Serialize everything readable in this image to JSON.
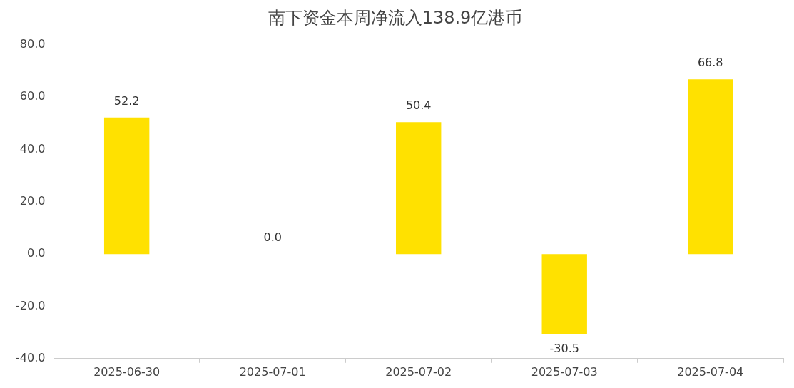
{
  "chart_data": {
    "type": "bar",
    "title": "南下资金本周净流入138.9亿港币",
    "categories": [
      "2025-06-30",
      "2025-07-01",
      "2025-07-02",
      "2025-07-03",
      "2025-07-04"
    ],
    "values": [
      52.2,
      0,
      50.4,
      -30.5,
      66.8
    ],
    "value_labels": [
      "52.2",
      "0.0",
      "50.4",
      "-30.5",
      "66.8"
    ],
    "color": "#ffe100",
    "ylim": [
      -40,
      80
    ],
    "yticks": [
      {
        "value": -40,
        "label": "-40.0"
      },
      {
        "value": -20,
        "label": "-20.0"
      },
      {
        "value": 0,
        "label": "0.0"
      },
      {
        "value": 20,
        "label": "20.0"
      },
      {
        "value": 40,
        "label": "40.0"
      },
      {
        "value": 60,
        "label": "60.0"
      },
      {
        "value": 80,
        "label": "80.0"
      }
    ],
    "grid": false,
    "legend": false
  }
}
